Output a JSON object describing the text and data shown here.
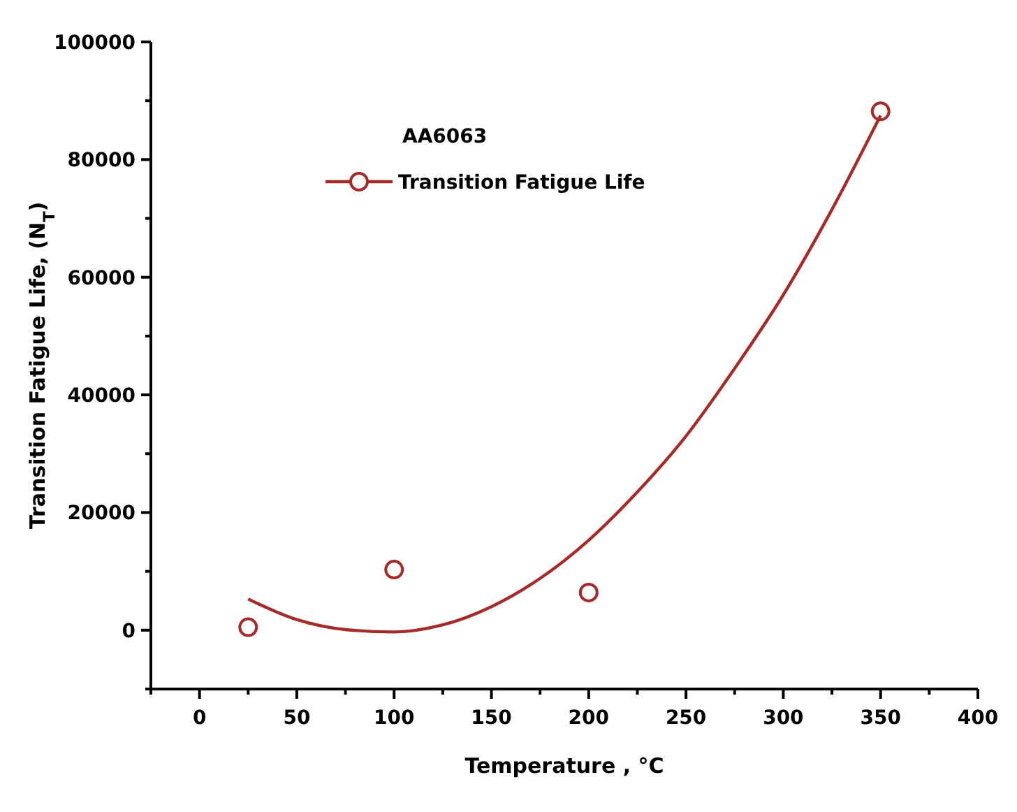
{
  "chart_data": {
    "type": "scatter",
    "xlabel": "Temperature , °C",
    "ylabel": "Transition  Fatigue Life, (N$_{T}$)",
    "legend_title": "AA6063",
    "legend": "top left",
    "xlim": [
      -25,
      400
    ],
    "ylim": [
      -10000,
      100000
    ],
    "xticks": [
      {
        "value": -25,
        "label": null
      },
      0,
      {
        "value": 25,
        "label": null
      },
      50,
      {
        "value": 75,
        "label": null
      },
      100,
      {
        "value": 125,
        "label": null
      },
      150,
      {
        "value": 175,
        "label": null
      },
      200,
      {
        "value": 225,
        "label": null
      },
      250,
      {
        "value": 275,
        "label": null
      },
      300,
      {
        "value": 325,
        "label": null
      },
      350,
      {
        "value": 375,
        "label": null
      },
      400
    ],
    "yticks": [
      {
        "value": -10000,
        "label": null
      },
      0,
      {
        "value": 10000,
        "label": null
      },
      20000,
      {
        "value": 30000,
        "label": null
      },
      40000,
      {
        "value": 50000,
        "label": null
      },
      60000,
      {
        "value": 70000,
        "label": null
      },
      80000,
      {
        "value": 90000,
        "label": null
      },
      100000
    ],
    "series": [
      {
        "name": "Transition Fatigue Life",
        "marker": "circle",
        "color": "#a52a2a",
        "x": [
          25,
          100,
          200,
          350
        ],
        "values": [
          500,
          10300,
          6400,
          88200
        ]
      },
      {
        "type": "line",
        "marker": "none",
        "color": "#a52a2a",
        "line_style": "solid",
        "x": [
          25,
          50,
          75,
          100,
          125,
          150,
          175,
          200,
          225,
          250,
          275,
          300,
          325,
          350
        ],
        "values": [
          5300,
          1800,
          100,
          -300,
          900,
          4000,
          8800,
          15300,
          23500,
          33000,
          44500,
          57000,
          71500,
          87500
        ]
      }
    ]
  }
}
